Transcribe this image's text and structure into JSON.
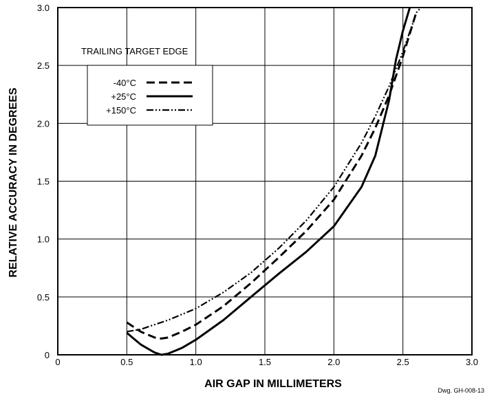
{
  "chart_data": {
    "type": "line",
    "title": "",
    "xlabel": "AIR GAP IN MILLIMETERS",
    "ylabel": "RELATIVE ACCURACY IN DEGREES",
    "xlim": [
      0,
      3.0
    ],
    "ylim": [
      0,
      3.0
    ],
    "x_ticks": [
      0,
      0.5,
      1.0,
      1.5,
      2.0,
      2.5,
      3.0
    ],
    "x_tick_labels": [
      "0",
      "0.5",
      "1.0",
      "1.5",
      "2.0",
      "2.5",
      "3.0"
    ],
    "y_ticks": [
      0,
      0.5,
      1.0,
      1.5,
      2.0,
      2.5,
      3.0
    ],
    "y_tick_labels": [
      "0",
      "0.5",
      "1.0",
      "1.5",
      "2.0",
      "2.5",
      "3.0"
    ],
    "grid": true,
    "legend": {
      "title": "TRAILING TARGET EDGE",
      "placement": "top-left"
    },
    "series": [
      {
        "name": "-40°C",
        "style": "dashed",
        "x": [
          0.5,
          0.6,
          0.7,
          0.75,
          0.8,
          0.9,
          1.0,
          1.2,
          1.4,
          1.6,
          1.8,
          2.0,
          2.2,
          2.3,
          2.4,
          2.5,
          2.6
        ],
        "y": [
          0.28,
          0.2,
          0.15,
          0.14,
          0.15,
          0.2,
          0.26,
          0.42,
          0.62,
          0.84,
          1.07,
          1.34,
          1.72,
          1.96,
          2.24,
          2.58,
          2.97
        ]
      },
      {
        "name": "+25°C",
        "style": "solid",
        "x": [
          0.5,
          0.6,
          0.7,
          0.75,
          0.8,
          0.9,
          1.0,
          1.2,
          1.4,
          1.6,
          1.8,
          2.0,
          2.2,
          2.3,
          2.4,
          2.45,
          2.5,
          2.55
        ],
        "y": [
          0.19,
          0.09,
          0.02,
          0.0,
          0.01,
          0.06,
          0.13,
          0.3,
          0.5,
          0.7,
          0.89,
          1.11,
          1.45,
          1.72,
          2.2,
          2.55,
          2.8,
          3.0
        ]
      },
      {
        "name": "+150°C",
        "style": "dash-dot-dot",
        "x": [
          0.5,
          0.6,
          0.7,
          0.8,
          0.9,
          1.0,
          1.2,
          1.4,
          1.6,
          1.8,
          2.0,
          2.2,
          2.3,
          2.4,
          2.5,
          2.6,
          2.63
        ],
        "y": [
          0.2,
          0.22,
          0.26,
          0.3,
          0.35,
          0.4,
          0.54,
          0.71,
          0.92,
          1.16,
          1.45,
          1.83,
          2.06,
          2.32,
          2.62,
          2.96,
          3.0
        ]
      }
    ],
    "annotations": [
      "Dwg. GH-008-13"
    ]
  }
}
